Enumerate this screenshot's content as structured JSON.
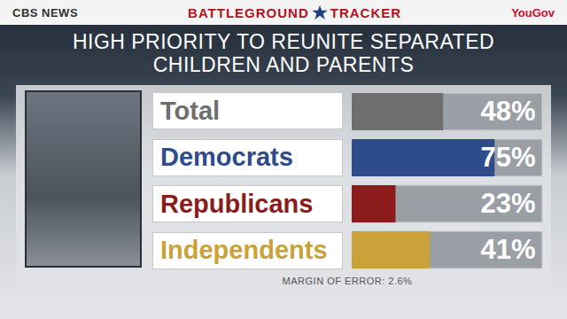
{
  "banner": {
    "left": "CBS NEWS",
    "center": [
      "BATTLEGROUND",
      "TRACKER"
    ],
    "right": "YouGov"
  },
  "chart_data": {
    "type": "bar",
    "orientation": "horizontal",
    "title": "HIGH PRIORITY TO REUNITE SEPARATED CHILDREN AND PARENTS",
    "categories": [
      "Total",
      "Democrats",
      "Republicans",
      "Independents"
    ],
    "values": [
      48,
      75,
      23,
      41
    ],
    "value_labels": [
      "48%",
      "75%",
      "23%",
      "41%"
    ],
    "colors": [
      "#6e6e6e",
      "#2e4b8c",
      "#8c1c1c",
      "#c9a33a"
    ],
    "xlim": [
      0,
      100
    ],
    "data_labels": true,
    "tick_labels": "y",
    "annotations": [
      "MARGIN OF ERROR: 2.6%"
    ]
  }
}
